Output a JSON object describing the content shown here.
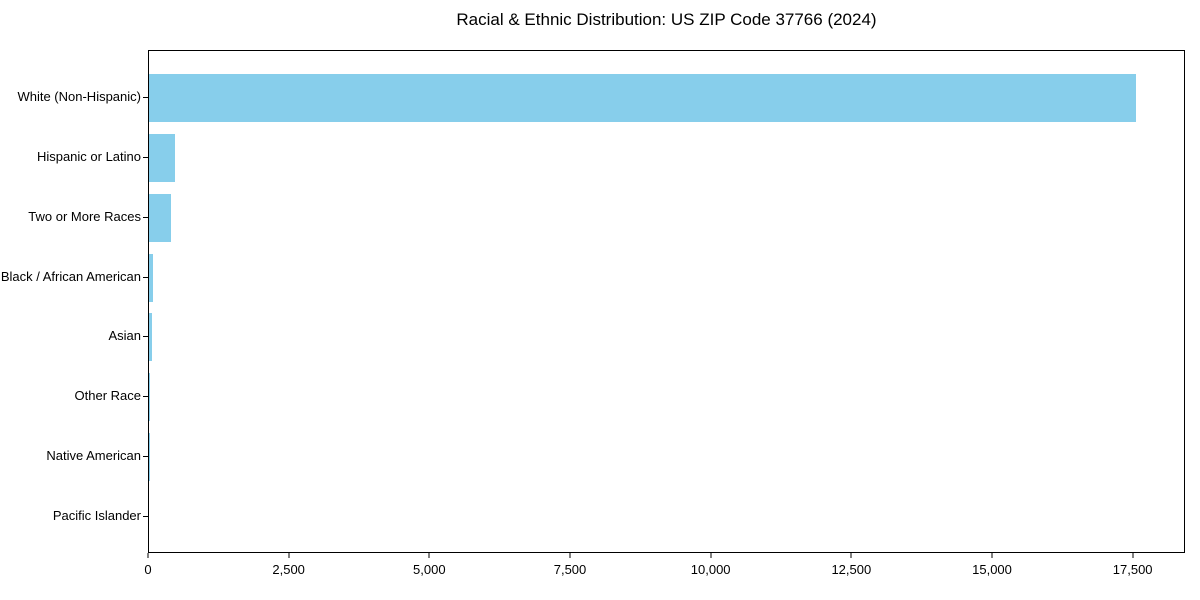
{
  "chart_data": {
    "type": "bar",
    "orientation": "horizontal",
    "title": "Racial & Ethnic Distribution: US ZIP Code 37766 (2024)",
    "xlabel": "",
    "ylabel": "",
    "categories": [
      "White (Non-Hispanic)",
      "Hispanic or Latino",
      "Two or More Races",
      "Black / African American",
      "Asian",
      "Other Race",
      "Native American",
      "Pacific Islander"
    ],
    "values": [
      17550,
      460,
      390,
      70,
      55,
      15,
      6,
      0
    ],
    "xlim": [
      0,
      18430
    ],
    "x_ticks": [
      0,
      2500,
      5000,
      7500,
      10000,
      12500,
      15000,
      17500
    ],
    "x_tick_labels": [
      "0",
      "2,500",
      "5,000",
      "7,500",
      "10,000",
      "12,500",
      "15,000",
      "17,500"
    ],
    "bar_color": "#87CEEB",
    "background_color": "#ffffff",
    "spine_color": "#000000",
    "grid": false,
    "legend": null
  }
}
